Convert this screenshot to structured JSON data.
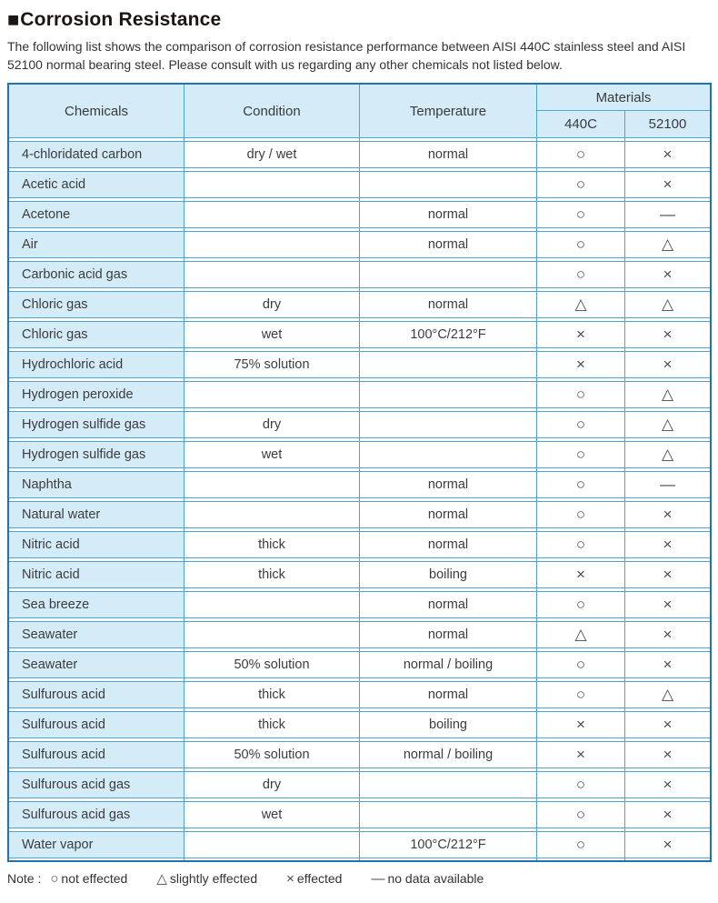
{
  "page": {
    "title_marker": "■",
    "title": "Corrosion Resistance",
    "description": "The following list shows the comparison of corrosion resistance performance between AISI 440C stainless steel and AISI 52100 normal bearing steel. Please consult with us regarding any other chemicals not listed below."
  },
  "table": {
    "headers": {
      "chemicals": "Chemicals",
      "condition": "Condition",
      "temperature": "Temperature",
      "materials": "Materials",
      "material_1": "440C",
      "material_2": "52100"
    },
    "rows": [
      {
        "chemical": "4-chloridated carbon",
        "condition": "dry / wet",
        "temperature": "normal",
        "c440": "○",
        "c52100": "×"
      },
      {
        "chemical": "Acetic acid",
        "condition": "",
        "temperature": "",
        "c440": "○",
        "c52100": "×"
      },
      {
        "chemical": "Acetone",
        "condition": "",
        "temperature": "normal",
        "c440": "○",
        "c52100": "—"
      },
      {
        "chemical": "Air",
        "condition": "",
        "temperature": "normal",
        "c440": "○",
        "c52100": "△"
      },
      {
        "chemical": "Carbonic acid gas",
        "condition": "",
        "temperature": "",
        "c440": "○",
        "c52100": "×"
      },
      {
        "chemical": "Chloric gas",
        "condition": "dry",
        "temperature": "normal",
        "c440": "△",
        "c52100": "△"
      },
      {
        "chemical": "Chloric gas",
        "condition": "wet",
        "temperature": "100°C/212°F",
        "c440": "×",
        "c52100": "×"
      },
      {
        "chemical": "Hydrochloric acid",
        "condition": "75% solution",
        "temperature": "",
        "c440": "×",
        "c52100": "×"
      },
      {
        "chemical": "Hydrogen peroxide",
        "condition": "",
        "temperature": "",
        "c440": "○",
        "c52100": "△"
      },
      {
        "chemical": "Hydrogen sulfide gas",
        "condition": "dry",
        "temperature": "",
        "c440": "○",
        "c52100": "△"
      },
      {
        "chemical": "Hydrogen sulfide gas",
        "condition": "wet",
        "temperature": "",
        "c440": "○",
        "c52100": "△"
      },
      {
        "chemical": "Naphtha",
        "condition": "",
        "temperature": "normal",
        "c440": "○",
        "c52100": "—"
      },
      {
        "chemical": "Natural water",
        "condition": "",
        "temperature": "normal",
        "c440": "○",
        "c52100": "×"
      },
      {
        "chemical": "Nitric acid",
        "condition": "thick",
        "temperature": "normal",
        "c440": "○",
        "c52100": "×"
      },
      {
        "chemical": "Nitric acid",
        "condition": "thick",
        "temperature": "boiling",
        "c440": "×",
        "c52100": "×"
      },
      {
        "chemical": "Sea breeze",
        "condition": "",
        "temperature": "normal",
        "c440": "○",
        "c52100": "×"
      },
      {
        "chemical": "Seawater",
        "condition": "",
        "temperature": "normal",
        "c440": "△",
        "c52100": "×"
      },
      {
        "chemical": "Seawater",
        "condition": "50% solution",
        "temperature": "normal / boiling",
        "c440": "○",
        "c52100": "×"
      },
      {
        "chemical": "Sulfurous acid",
        "condition": "thick",
        "temperature": "normal",
        "c440": "○",
        "c52100": "△"
      },
      {
        "chemical": "Sulfurous acid",
        "condition": "thick",
        "temperature": "boiling",
        "c440": "×",
        "c52100": "×"
      },
      {
        "chemical": "Sulfurous acid",
        "condition": "50% solution",
        "temperature": "normal / boiling",
        "c440": "×",
        "c52100": "×"
      },
      {
        "chemical": "Sulfurous acid gas",
        "condition": "dry",
        "temperature": "",
        "c440": "○",
        "c52100": "×"
      },
      {
        "chemical": "Sulfurous acid gas",
        "condition": "wet",
        "temperature": "",
        "c440": "○",
        "c52100": "×"
      },
      {
        "chemical": "Water vapor",
        "condition": "",
        "temperature": "100°C/212°F",
        "c440": "○",
        "c52100": "×"
      }
    ]
  },
  "note": {
    "label": "Note :",
    "legend": [
      {
        "symbol": "○",
        "label": "not effected"
      },
      {
        "symbol": "△",
        "label": "slightly effected"
      },
      {
        "symbol": "×",
        "label": "effected"
      },
      {
        "symbol": "—",
        "label": "no data available"
      }
    ]
  },
  "colors": {
    "cell_fill": "#d4ecf8",
    "grid_line": "#4fa3d3",
    "outer_border": "#1f74ab",
    "text": "#3c3c3c"
  }
}
